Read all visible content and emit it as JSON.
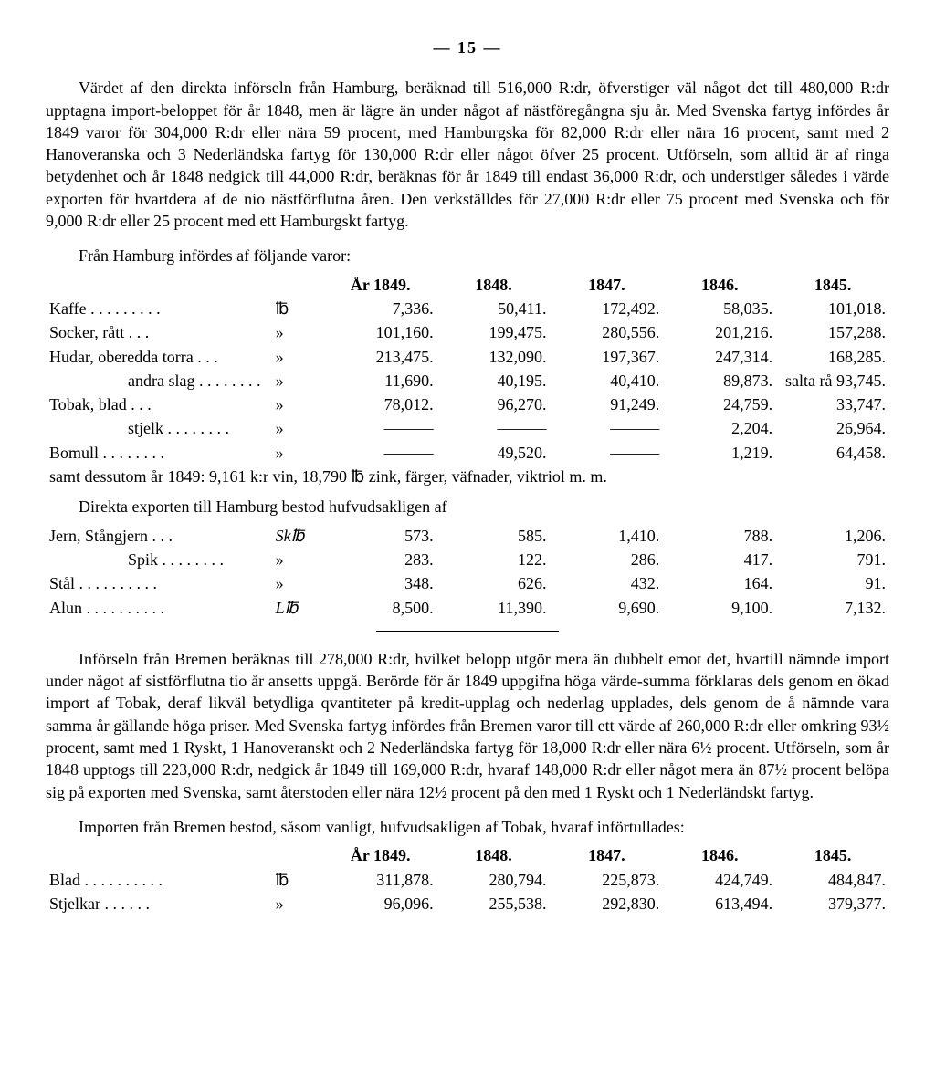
{
  "page_number": "— 15 —",
  "para1": "Värdet af den direkta införseln från Hamburg, beräknad till 516,000 R:dr, öfverstiger väl något det till 480,000 R:dr upptagna import-beloppet för år 1848, men är lägre än under något af nästföregångna sju år. Med Svenska fartyg infördes år 1849 varor för 304,000 R:dr eller nära 59 procent, med Hamburgska för 82,000 R:dr eller nära 16 procent, samt med 2 Hanoveranska och 3 Nederländska fartyg för 130,000 R:dr eller något öfver 25 procent. Utförseln, som alltid är af ringa betydenhet och år 1848 nedgick till 44,000 R:dr, beräknas för år 1849 till endast 36,000 R:dr, och understiger således i värde exporten för hvartdera af de nio nästförflutna åren. Den verkställdes för 27,000 R:dr eller 75 procent med Svenska och för 9,000 R:dr eller 25 procent med ett Hamburgskt fartyg.",
  "table1_intro": "Från Hamburg infördes af följande varor:",
  "table1": {
    "headers": [
      "",
      "",
      "År 1849.",
      "1848.",
      "1847.",
      "1846.",
      "1845."
    ],
    "rows": [
      {
        "label": "Kaffe",
        "unit": "℔",
        "c": [
          "7,336.",
          "50,411.",
          "172,492.",
          "58,035.",
          "101,018."
        ]
      },
      {
        "label": "Socker, rått",
        "unit": "»",
        "c": [
          "101,160.",
          "199,475.",
          "280,556.",
          "201,216.",
          "157,288."
        ]
      },
      {
        "label": "Hudar, oberedda torra",
        "unit": "»",
        "c": [
          "213,475.",
          "132,090.",
          "197,367.",
          "247,314.",
          "168,285."
        ]
      },
      {
        "label": "andra slag",
        "indent": true,
        "unit": "»",
        "c": [
          "11,690.",
          "40,195.",
          "40,410.",
          "89,873.",
          "salta rå 93,745."
        ]
      },
      {
        "label": "Tobak, blad",
        "unit": "»",
        "c": [
          "78,012.",
          "96,270.",
          "91,249.",
          "24,759.",
          "33,747."
        ]
      },
      {
        "label": "stjelk",
        "indent": true,
        "unit": "»",
        "c": [
          "———",
          "———",
          "———",
          "2,204.",
          "26,964."
        ]
      },
      {
        "label": "Bomull",
        "unit": "»",
        "c": [
          "———",
          "49,520.",
          "———",
          "1,219.",
          "64,458."
        ]
      }
    ],
    "note": "samt dessutom år 1849: 9,161 k:r vin, 18,790 ℔ zink, färger, väfnader, viktriol m. m."
  },
  "table2_intro": "Direkta exporten till Hamburg bestod hufvudsakligen af",
  "table2": {
    "rows": [
      {
        "label": "Jern, Stångjern",
        "unit": "Sk℔",
        "c": [
          "573.",
          "585.",
          "1,410.",
          "788.",
          "1,206."
        ]
      },
      {
        "label": "Spik",
        "indent": true,
        "unit": "»",
        "c": [
          "283.",
          "122.",
          "286.",
          "417.",
          "791."
        ]
      },
      {
        "label": "Stål",
        "unit": "»",
        "c": [
          "348.",
          "626.",
          "432.",
          "164.",
          "91."
        ]
      },
      {
        "label": "Alun",
        "unit": "L℔",
        "c": [
          "8,500.",
          "11,390.",
          "9,690.",
          "9,100.",
          "7,132."
        ]
      }
    ]
  },
  "para2": "Införseln från Bremen beräknas till 278,000 R:dr, hvilket belopp utgör mera än dubbelt emot det, hvartill nämnde import under något af sistförflutna tio år ansetts uppgå. Berörde för år 1849 uppgifna höga värde-summa förklaras dels genom en ökad import af Tobak, deraf likväl betydliga qvantiteter på kredit-upplag och nederlag upplades, dels genom de å nämnde vara samma år gällande höga priser. Med Svenska fartyg infördes från Bremen varor till ett värde af 260,000 R:dr eller omkring 93½ procent, samt med 1 Ryskt, 1 Hanoveranskt och 2 Nederländska fartyg för 18,000 R:dr eller nära 6½ procent. Utförseln, som år 1848 upptogs till 223,000 R:dr, nedgick år 1849 till 169,000 R:dr, hvaraf 148,000 R:dr eller något mera än 87½ procent belöpa sig på exporten med Svenska, samt återstoden eller nära 12½ procent på den med 1 Ryskt och 1 Nederländskt fartyg.",
  "table3_intro": "Importen från Bremen bestod, såsom vanligt, hufvudsakligen af Tobak, hvaraf införtullades:",
  "table3": {
    "headers": [
      "",
      "",
      "År 1849.",
      "1848.",
      "1847.",
      "1846.",
      "1845."
    ],
    "rows": [
      {
        "label": "Blad",
        "unit": "℔",
        "c": [
          "311,878.",
          "280,794.",
          "225,873.",
          "424,749.",
          "484,847."
        ]
      },
      {
        "label": "Stjelkar",
        "unit": "»",
        "c": [
          "96,096.",
          "255,538.",
          "292,830.",
          "613,494.",
          "379,377."
        ]
      }
    ]
  }
}
